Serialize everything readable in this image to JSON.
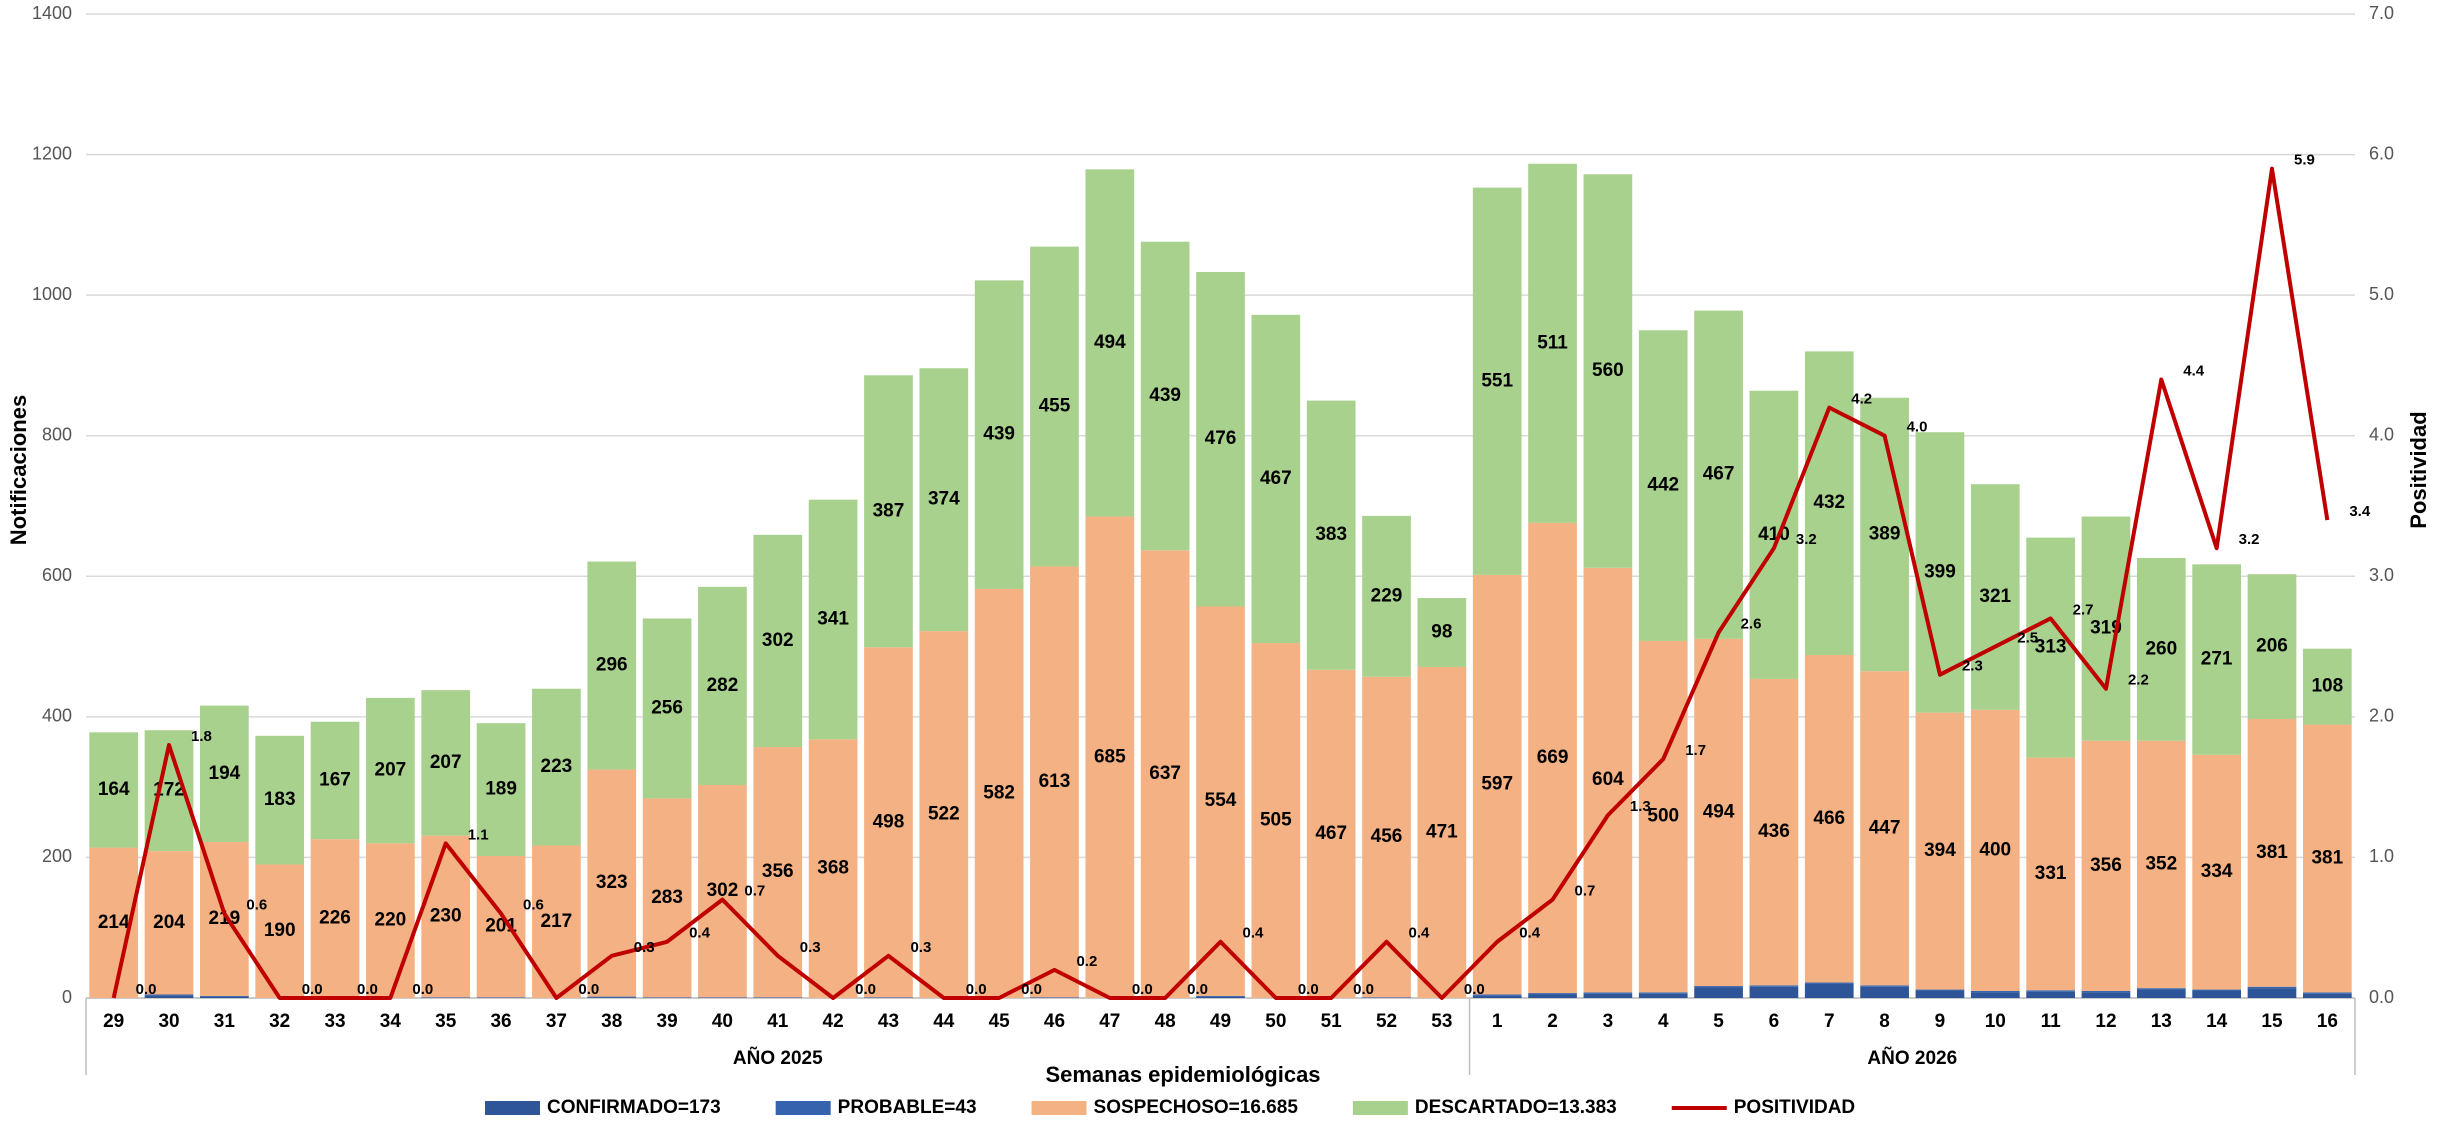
{
  "chart_data": {
    "type": "bar",
    "stacked": true,
    "xlabel": "Semanas epidemiológicas",
    "ylabel": "Notificaciones",
    "y2label": "Positividad",
    "categories": [
      "29",
      "30",
      "31",
      "32",
      "33",
      "34",
      "35",
      "36",
      "37",
      "38",
      "39",
      "40",
      "41",
      "42",
      "43",
      "44",
      "45",
      "46",
      "47",
      "48",
      "49",
      "50",
      "51",
      "52",
      "53",
      "1",
      "2",
      "3",
      "4",
      "5",
      "6",
      "7",
      "8",
      "9",
      "10",
      "11",
      "12",
      "13",
      "14",
      "15",
      "16"
    ],
    "groups": [
      "AÑO 2025",
      "AÑO 2026"
    ],
    "ylim": [
      0,
      1400
    ],
    "yticks": [
      0,
      200,
      400,
      600,
      800,
      1000,
      1200,
      1400
    ],
    "y2lim": [
      0,
      7
    ],
    "y2ticks": [
      {
        "value": 0,
        "label": "0.0"
      },
      {
        "value": 1,
        "label": "1.0"
      },
      {
        "value": 2,
        "label": "2.0"
      },
      {
        "value": 3,
        "label": "3.0"
      },
      {
        "value": 4,
        "label": "4.0"
      },
      {
        "value": 5,
        "label": "5.0"
      },
      {
        "value": 6,
        "label": "6.0"
      },
      {
        "value": 7,
        "label": "7.0"
      }
    ],
    "grid": true,
    "legend": "bottom",
    "series": [
      {
        "name": "CONFIRMADO=173",
        "color": "#2e5597",
        "labels": false,
        "values": [
          0,
          4,
          2,
          0,
          0,
          0,
          0,
          0,
          0,
          1,
          0,
          0,
          0,
          0,
          0,
          0,
          0,
          0,
          0,
          0,
          2,
          0,
          0,
          0,
          0,
          3,
          5,
          6,
          6,
          15,
          16,
          20,
          16,
          10,
          8,
          9,
          8,
          12,
          10,
          14,
          6
        ]
      },
      {
        "name": "PROBABLE=43",
        "color": "#3663ad",
        "labels": false,
        "values": [
          0,
          1,
          1,
          0,
          0,
          0,
          1,
          1,
          0,
          1,
          1,
          1,
          1,
          0,
          1,
          0,
          0,
          1,
          0,
          0,
          1,
          0,
          0,
          1,
          0,
          2,
          2,
          2,
          2,
          2,
          2,
          2,
          2,
          2,
          2,
          2,
          2,
          2,
          2,
          2,
          2
        ]
      },
      {
        "name": "SOSPECHOSO=16.685",
        "color": "#f4b183",
        "labels": true,
        "values": [
          214,
          204,
          219,
          190,
          226,
          220,
          230,
          201,
          217,
          323,
          283,
          302,
          356,
          368,
          498,
          522,
          582,
          613,
          685,
          637,
          554,
          505,
          467,
          456,
          471,
          597,
          669,
          604,
          500,
          494,
          436,
          466,
          447,
          394,
          400,
          331,
          356,
          352,
          334,
          381,
          381
        ]
      },
      {
        "name": "DESCARTADO=13.383",
        "color": "#a9d18e",
        "labels": true,
        "values": [
          164,
          172,
          194,
          183,
          167,
          207,
          207,
          189,
          223,
          296,
          256,
          282,
          302,
          341,
          387,
          374,
          439,
          455,
          494,
          439,
          476,
          467,
          383,
          229,
          98,
          551,
          511,
          560,
          442,
          467,
          410,
          432,
          389,
          399,
          321,
          313,
          319,
          260,
          271,
          206,
          108
        ]
      },
      {
        "name": "POSITIVIDAD",
        "color": "#c00000",
        "type": "line",
        "axis": "y2",
        "labels": true,
        "values": [
          0,
          1.8,
          0.6,
          0,
          0,
          0,
          1.1,
          0.6,
          0,
          0.3,
          0.4,
          0.7,
          0.3,
          0,
          0.3,
          0,
          0,
          0.2,
          0,
          0,
          0.4,
          0,
          0,
          0.4,
          0,
          0.4,
          0.7,
          1.3,
          1.7,
          2.6,
          3.2,
          4.2,
          4.0,
          2.3,
          2.5,
          2.7,
          2.2,
          4.4,
          3.2,
          5.9,
          3.4
        ],
        "value_labels": [
          "0.0",
          "1.8",
          "0.6",
          "0.0",
          "0.0",
          "0.0",
          "1.1",
          "0.6",
          "0.0",
          "0.3",
          "0.4",
          "0.7",
          "0.3",
          "0.0",
          "0.3",
          "0.0",
          "0.0",
          "0.2",
          "0.0",
          "0.0",
          "0.4",
          "0.0",
          "0.0",
          "0.4",
          "0.0",
          "0.4",
          "0.7",
          "1.3",
          "1.7",
          "2.6",
          "3.2",
          "4.2",
          "4.0",
          "2.3",
          "2.5",
          "2.7",
          "2.2",
          "4.4",
          "3.2",
          "5.9",
          "3.4"
        ]
      }
    ]
  }
}
